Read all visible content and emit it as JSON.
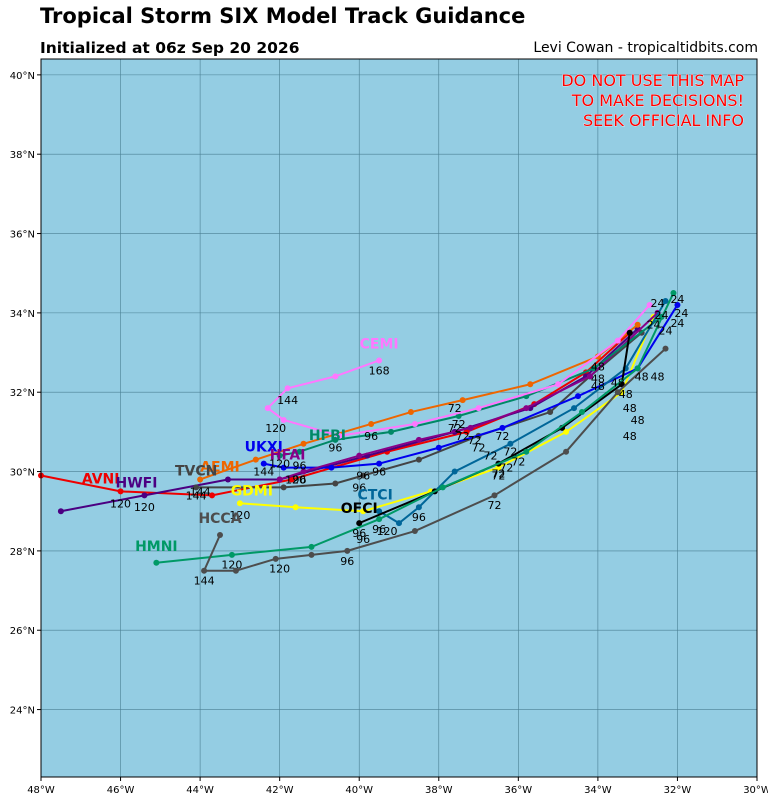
{
  "header": {
    "title": "Tropical Storm SIX Model Track Guidance",
    "subtitle": "Initialized at 06z Sep 20 2026",
    "credit": "Levi Cowan - tropicaltidbits.com"
  },
  "warning": [
    "DO NOT USE THIS MAP",
    "TO MAKE DECISIONS!",
    "SEEK OFFICIAL INFO"
  ],
  "colors": {
    "ocean": "#94cde3",
    "grid": "#4a7f93"
  },
  "axes": {
    "lon_range": [
      -48,
      -30
    ],
    "lat_range": [
      22.3,
      40.4
    ],
    "lon_ticks": [
      {
        "v": -48,
        "label": "48°W"
      },
      {
        "v": -46,
        "label": "46°W"
      },
      {
        "v": -44,
        "label": "44°W"
      },
      {
        "v": -42,
        "label": "42°W"
      },
      {
        "v": -40,
        "label": "40°W"
      },
      {
        "v": -38,
        "label": "38°W"
      },
      {
        "v": -36,
        "label": "36°W"
      },
      {
        "v": -34,
        "label": "34°W"
      },
      {
        "v": -32,
        "label": "32°W"
      },
      {
        "v": -30,
        "label": "30°W"
      }
    ],
    "lat_ticks": [
      {
        "v": 24,
        "label": "24°N"
      },
      {
        "v": 26,
        "label": "26°N"
      },
      {
        "v": 28,
        "label": "28°N"
      },
      {
        "v": 30,
        "label": "30°N"
      },
      {
        "v": 32,
        "label": "32°N"
      },
      {
        "v": 34,
        "label": "34°N"
      },
      {
        "v": 36,
        "label": "36°N"
      },
      {
        "v": 38,
        "label": "38°N"
      },
      {
        "v": 40,
        "label": "40°N"
      }
    ]
  },
  "chart_data": {
    "type": "line",
    "title": "Tropical Storm SIX Model Track Guidance",
    "xlabel": "",
    "ylabel": "",
    "xlim": [
      -48,
      -30
    ],
    "ylim": [
      22.3,
      40.4
    ],
    "grid": true,
    "series": [
      {
        "name": "AVNI",
        "color": "#ee0000",
        "points": [
          [
            -33.2,
            33.5
          ],
          [
            -34.3,
            32.5
          ],
          [
            -35.6,
            31.7
          ],
          [
            -37.3,
            31.0
          ],
          [
            -39.3,
            30.5
          ],
          [
            -41.7,
            29.8
          ],
          [
            -43.7,
            29.4
          ],
          [
            -46.0,
            29.5
          ],
          [
            -48.0,
            29.9
          ]
        ],
        "label_pos": [
          -46.5,
          29.7
        ],
        "hour_labels": [
          {
            "p": [
              -37.6,
              31.0
            ],
            "t": "72"
          },
          {
            "p": [
              -46.0,
              29.1
            ],
            "t": "120"
          }
        ]
      },
      {
        "name": "HWFI",
        "color": "#4b0082",
        "points": [
          [
            -33.0,
            33.6
          ],
          [
            -34.3,
            32.4
          ],
          [
            -35.7,
            31.6
          ],
          [
            -37.6,
            31.0
          ],
          [
            -39.8,
            30.4
          ],
          [
            -42.0,
            29.8
          ],
          [
            -43.3,
            29.8
          ],
          [
            -45.4,
            29.4
          ],
          [
            -47.5,
            29.0
          ]
        ],
        "label_pos": [
          -45.6,
          29.6
        ],
        "hour_labels": [
          {
            "p": [
              -37.4,
              30.8
            ],
            "t": "72"
          },
          {
            "p": [
              -45.4,
              29.0
            ],
            "t": "120"
          }
        ]
      },
      {
        "name": "AEMI",
        "color": "#ee6600",
        "points": [
          [
            -33.0,
            33.7
          ],
          [
            -34.0,
            32.9
          ],
          [
            -35.7,
            32.2
          ],
          [
            -37.4,
            31.8
          ],
          [
            -38.7,
            31.5
          ],
          [
            -39.7,
            31.2
          ],
          [
            -41.4,
            30.7
          ],
          [
            -42.6,
            30.3
          ],
          [
            -44.0,
            29.8
          ]
        ],
        "label_pos": [
          -43.5,
          30.0
        ],
        "hour_labels": [
          {
            "p": [
              -37.6,
              31.5
            ],
            "t": "72"
          },
          {
            "p": [
              -39.7,
              30.8
            ],
            "t": "96"
          },
          {
            "p": [
              -44.0,
              29.4
            ],
            "t": "144"
          }
        ]
      },
      {
        "name": "TVCN",
        "color": "#444444",
        "points": [
          [
            -32.9,
            33.5
          ],
          [
            -34.2,
            32.4
          ],
          [
            -35.2,
            31.5
          ],
          [
            -37.0,
            30.9
          ],
          [
            -38.5,
            30.3
          ],
          [
            -39.9,
            29.9
          ],
          [
            -40.6,
            29.7
          ],
          [
            -41.9,
            29.6
          ],
          [
            -44.1,
            29.6
          ]
        ],
        "label_pos": [
          -44.1,
          29.9
        ],
        "hour_labels": [
          {
            "p": [
              -37.0,
              30.5
            ],
            "t": "72"
          },
          {
            "p": [
              -40.0,
              29.5
            ],
            "t": "96"
          },
          {
            "p": [
              -41.6,
              29.7
            ],
            "t": "120"
          },
          {
            "p": [
              -44.1,
              29.3
            ],
            "t": "144"
          }
        ]
      },
      {
        "name": "GDMI",
        "color": "#ffff00",
        "points": [
          [
            -32.6,
            33.9
          ],
          [
            -33.4,
            32.0
          ],
          [
            -34.8,
            31.0
          ],
          [
            -36.5,
            30.1
          ],
          [
            -38.2,
            29.5
          ],
          [
            -39.9,
            29.0
          ],
          [
            -41.6,
            29.1
          ],
          [
            -43.0,
            29.2
          ]
        ],
        "label_pos": [
          -42.7,
          29.4
        ],
        "hour_labels": [
          {
            "p": [
              -36.5,
              29.8
            ],
            "t": "72"
          },
          {
            "p": [
              -43.0,
              28.8
            ],
            "t": "120"
          }
        ]
      },
      {
        "name": "UKXI",
        "color": "#0000ee",
        "points": [
          [
            -32.0,
            34.2
          ],
          [
            -33.0,
            32.6
          ],
          [
            -34.5,
            31.9
          ],
          [
            -36.4,
            31.1
          ],
          [
            -38.0,
            30.6
          ],
          [
            -39.5,
            30.2
          ],
          [
            -40.7,
            30.1
          ],
          [
            -41.9,
            30.1
          ],
          [
            -42.4,
            30.2
          ]
        ],
        "label_pos": [
          -42.4,
          30.5
        ],
        "hour_labels": [
          {
            "p": [
              -36.4,
              30.8
            ],
            "t": "72"
          },
          {
            "p": [
              -39.5,
              29.9
            ],
            "t": "96"
          },
          {
            "p": [
              -42.4,
              29.9
            ],
            "t": "144"
          }
        ]
      },
      {
        "name": "HFAI",
        "color": "#880088",
        "points": [
          [
            -32.5,
            34.0
          ],
          [
            -34.2,
            32.4
          ],
          [
            -35.8,
            31.6
          ],
          [
            -37.2,
            31.1
          ],
          [
            -38.5,
            30.8
          ],
          [
            -40.0,
            30.4
          ],
          [
            -41.4,
            30.0
          ],
          [
            -42.0,
            29.8
          ]
        ],
        "label_pos": [
          -41.8,
          30.3
        ],
        "hour_labels": [
          {
            "p": [
              -37.1,
              30.7
            ],
            "t": "72"
          },
          {
            "p": [
              -41.5,
              29.7
            ],
            "t": "96"
          }
        ]
      },
      {
        "name": "HFBI",
        "color": "#008866",
        "points": [
          [
            -32.4,
            33.9
          ],
          [
            -34.1,
            32.6
          ],
          [
            -35.8,
            31.9
          ],
          [
            -37.5,
            31.4
          ],
          [
            -39.2,
            31.0
          ],
          [
            -40.6,
            30.8
          ],
          [
            -41.5,
            30.5
          ],
          [
            -42.0,
            30.4
          ]
        ],
        "label_pos": [
          -40.8,
          30.8
        ],
        "hour_labels": [
          {
            "p": [
              -37.5,
              31.1
            ],
            "t": "72"
          },
          {
            "p": [
              -40.6,
              30.5
            ],
            "t": "96"
          },
          {
            "p": [
              -42.0,
              30.1
            ],
            "t": "120"
          }
        ]
      },
      {
        "name": "CEMI",
        "color": "#ff77ff",
        "points": [
          [
            -32.7,
            34.2
          ],
          [
            -33.5,
            33.3
          ],
          [
            -35.0,
            32.2
          ],
          [
            -37.0,
            31.6
          ],
          [
            -38.6,
            31.2
          ],
          [
            -40.5,
            30.9
          ],
          [
            -41.9,
            31.3
          ],
          [
            -42.3,
            31.6
          ],
          [
            -41.8,
            32.1
          ],
          [
            -40.6,
            32.4
          ],
          [
            -39.5,
            32.8
          ]
        ],
        "label_pos": [
          -39.5,
          33.1
        ],
        "hour_labels": [
          {
            "p": [
              -42.1,
              31.0
            ],
            "t": "120"
          },
          {
            "p": [
              -41.8,
              31.7
            ],
            "t": "144"
          },
          {
            "p": [
              -39.5,
              32.45
            ],
            "t": "168"
          }
        ]
      },
      {
        "name": "CTCI",
        "color": "#006699",
        "points": [
          [
            -32.3,
            34.3
          ],
          [
            -33.3,
            32.6
          ],
          [
            -34.6,
            31.6
          ],
          [
            -36.2,
            30.7
          ],
          [
            -37.6,
            30.0
          ],
          [
            -38.5,
            29.1
          ],
          [
            -39.0,
            28.7
          ],
          [
            -39.5,
            29.0
          ]
        ],
        "label_pos": [
          -39.6,
          29.3
        ],
        "hour_labels": [
          {
            "p": [
              -36.2,
              30.4
            ],
            "t": "72"
          },
          {
            "p": [
              -38.5,
              28.75
            ],
            "t": "96"
          },
          {
            "p": [
              -39.3,
              28.4
            ],
            "t": "120"
          }
        ]
      },
      {
        "name": "OFCI",
        "color": "#000000",
        "points": [
          [
            -33.2,
            33.5
          ],
          [
            -33.4,
            32.2
          ],
          [
            -34.9,
            31.1
          ],
          [
            -36.5,
            30.2
          ],
          [
            -38.1,
            29.5
          ],
          [
            -40.0,
            28.7
          ]
        ],
        "label_pos": [
          -40.0,
          28.95
        ],
        "hour_labels": [
          {
            "p": [
              -36.5,
              29.85
            ],
            "t": "72"
          },
          {
            "p": [
              -40.0,
              28.35
            ],
            "t": "96"
          }
        ]
      },
      {
        "name": "HMNI",
        "color": "#009966",
        "points": [
          [
            -32.1,
            34.5
          ],
          [
            -33.0,
            32.6
          ],
          [
            -34.4,
            31.5
          ],
          [
            -35.8,
            30.5
          ],
          [
            -37.9,
            29.6
          ],
          [
            -39.5,
            28.8
          ],
          [
            -41.2,
            28.1
          ],
          [
            -43.2,
            27.9
          ],
          [
            -45.1,
            27.7
          ]
        ],
        "label_pos": [
          -45.1,
          28.0
        ],
        "hour_labels": [
          {
            "p": [
              -39.5,
              28.45
            ],
            "t": "96"
          },
          {
            "p": [
              -43.2,
              27.55
            ],
            "t": "120"
          }
        ]
      },
      {
        "name": "HCCA",
        "color": "#4d4d4d",
        "points": [
          [
            -32.3,
            33.1
          ],
          [
            -33.5,
            32.0
          ],
          [
            -34.8,
            30.5
          ],
          [
            -36.6,
            29.4
          ],
          [
            -38.6,
            28.5
          ],
          [
            -40.3,
            28.0
          ],
          [
            -41.2,
            27.9
          ],
          [
            -42.1,
            27.8
          ],
          [
            -43.1,
            27.5
          ],
          [
            -43.9,
            27.5
          ],
          [
            -43.5,
            28.4
          ]
        ],
        "label_pos": [
          -43.5,
          28.7
        ],
        "hour_labels": [
          {
            "p": [
              -36.6,
              29.05
            ],
            "t": "72"
          },
          {
            "p": [
              -40.3,
              27.65
            ],
            "t": "96"
          },
          {
            "p": [
              -42.0,
              27.45
            ],
            "t": "120"
          },
          {
            "p": [
              -43.9,
              27.15
            ],
            "t": "144"
          }
        ]
      }
    ],
    "hour48_labels": [
      {
        "p": [
          -34.0,
          32.55
        ],
        "t": "48"
      },
      {
        "p": [
          -34.0,
          32.25
        ],
        "t": "48"
      },
      {
        "p": [
          -34.0,
          32.05
        ],
        "t": "48"
      },
      {
        "p": [
          -33.5,
          32.15
        ],
        "t": "48"
      },
      {
        "p": [
          -33.3,
          31.85
        ],
        "t": "48"
      },
      {
        "p": [
          -33.2,
          31.5
        ],
        "t": "48"
      },
      {
        "p": [
          -33.0,
          31.2
        ],
        "t": "48"
      },
      {
        "p": [
          -33.2,
          30.8
        ],
        "t": "48"
      },
      {
        "p": [
          -32.9,
          32.3
        ],
        "t": "48"
      },
      {
        "p": [
          -32.5,
          32.3
        ],
        "t": "48"
      }
    ],
    "hour24_labels": [
      {
        "p": [
          -32.5,
          34.15
        ],
        "t": "24"
      },
      {
        "p": [
          -32.4,
          33.85
        ],
        "t": "24"
      },
      {
        "p": [
          -32.6,
          33.6
        ],
        "t": "24"
      },
      {
        "p": [
          -32.3,
          33.45
        ],
        "t": "24"
      },
      {
        "p": [
          -32.0,
          33.65
        ],
        "t": "24"
      },
      {
        "p": [
          -31.9,
          33.9
        ],
        "t": "24"
      },
      {
        "p": [
          -32.0,
          34.25
        ],
        "t": "24"
      }
    ],
    "extra72_labels": [
      {
        "p": [
          -36.0,
          30.15
        ],
        "t": "72"
      },
      {
        "p": [
          -36.3,
          30.0
        ],
        "t": "72"
      },
      {
        "p": [
          -36.7,
          30.3
        ],
        "t": "72"
      }
    ],
    "extra96_labels": [
      {
        "p": [
          -41.5,
          30.05
        ],
        "t": "96"
      },
      {
        "p": [
          -39.9,
          28.2
        ],
        "t": "96"
      },
      {
        "p": [
          -39.9,
          29.8
        ],
        "t": "96"
      }
    ]
  }
}
